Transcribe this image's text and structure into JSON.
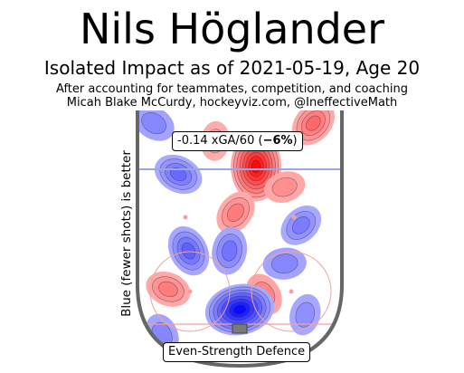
{
  "header": {
    "title": "Nils Höglander",
    "subtitle": "Isolated Impact as of 2021-05-19, Age 20",
    "note_line1": "After accounting for teammates, competition, and coaching",
    "note_line2": "Micah Blake McCurdy, hockeyviz.com, @IneffectiveMath"
  },
  "chart_data": {
    "type": "heatmap",
    "title": "Nils Höglander",
    "subtitle": "Isolated Impact as of 2021-05-19, Age 20",
    "ylabel": "Blue (fewer shots) is better",
    "summary_value": "-0.14 xGA/60 (",
    "summary_pct": "−6%",
    "summary_close": ")",
    "context": "Even-Strength Defence",
    "color_scale": {
      "good": "#0000ff",
      "bad": "#ff0000",
      "neutral": "#ffffff"
    },
    "regions": [
      {
        "x": 0.58,
        "y": 0.22,
        "value": 0.95
      },
      {
        "x": 0.48,
        "y": 0.4,
        "value": 0.35
      },
      {
        "x": 0.72,
        "y": 0.3,
        "value": 0.25
      },
      {
        "x": 0.15,
        "y": 0.7,
        "value": 0.35
      },
      {
        "x": 0.62,
        "y": 0.72,
        "value": 0.3
      },
      {
        "x": 0.38,
        "y": 0.12,
        "value": 0.2
      },
      {
        "x": 0.86,
        "y": 0.05,
        "value": 0.45
      },
      {
        "x": 0.5,
        "y": 0.78,
        "value": -0.95
      },
      {
        "x": 0.2,
        "y": 0.25,
        "value": -0.45
      },
      {
        "x": 0.25,
        "y": 0.55,
        "value": -0.5
      },
      {
        "x": 0.45,
        "y": 0.55,
        "value": -0.4
      },
      {
        "x": 0.8,
        "y": 0.45,
        "value": -0.35
      },
      {
        "x": 0.72,
        "y": 0.6,
        "value": -0.3
      },
      {
        "x": 0.08,
        "y": 0.05,
        "value": -0.3
      },
      {
        "x": 0.12,
        "y": 0.88,
        "value": -0.3
      },
      {
        "x": 0.82,
        "y": 0.8,
        "value": -0.25
      }
    ]
  }
}
